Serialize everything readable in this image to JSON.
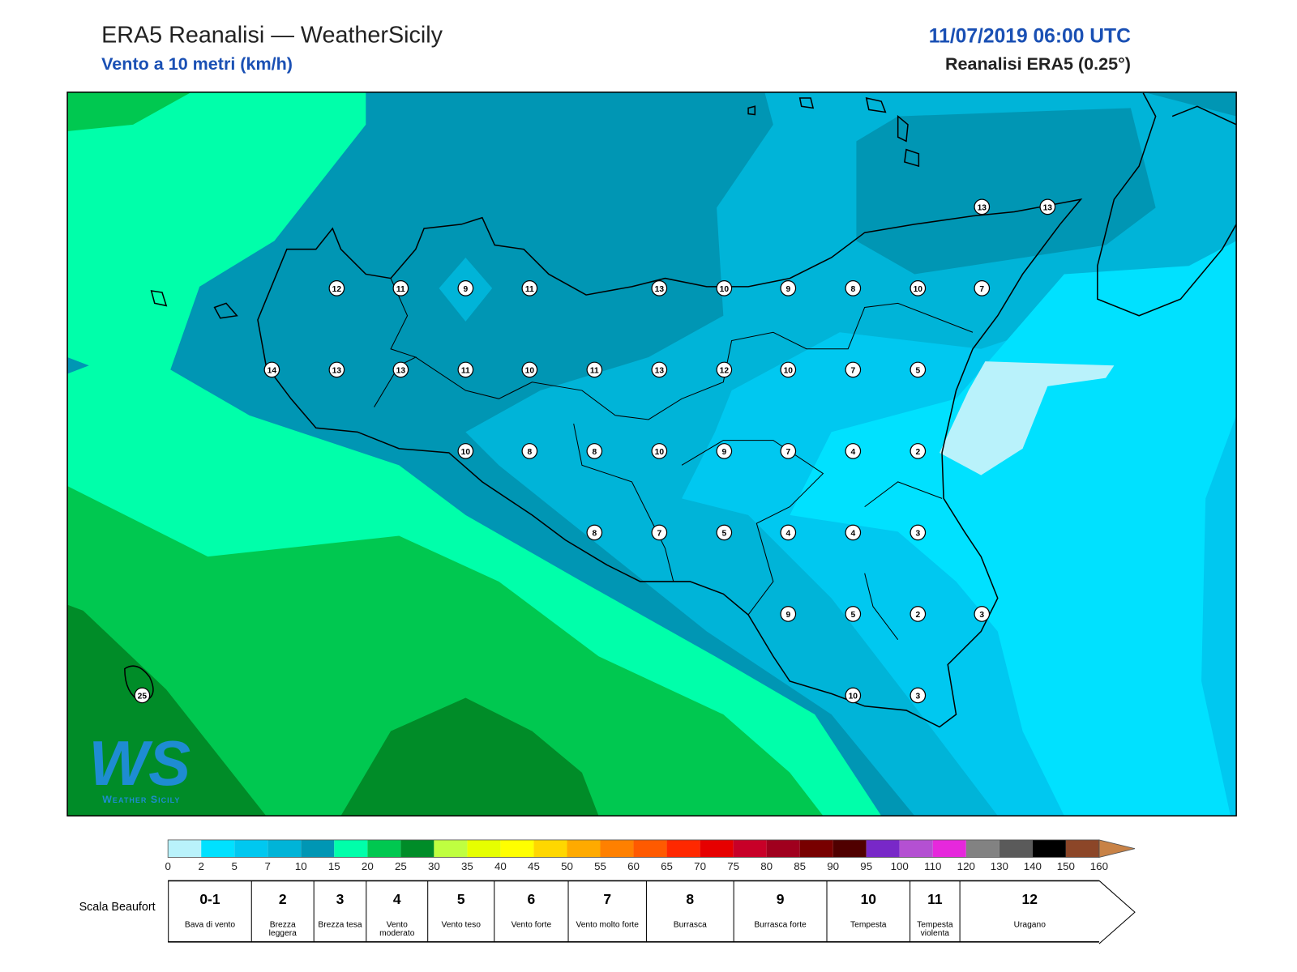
{
  "header": {
    "title": "ERA5 Reanalisi — WeatherSicily",
    "subtitle": "Vento a 10 metri (km/h)",
    "date": "11/07/2019 06:00 UTC",
    "source": "Reanalisi ERA5 (0.25°)"
  },
  "logo": {
    "mark": "WS",
    "text": "Weather Sicily"
  },
  "stations": [
    12,
    11,
    9,
    11,
    13,
    10,
    9,
    8,
    10,
    7,
    13,
    13,
    14,
    13,
    13,
    11,
    10,
    11,
    13,
    12,
    10,
    7,
    5,
    10,
    8,
    8,
    10,
    9,
    7,
    4,
    2,
    8,
    7,
    5,
    4,
    4,
    3,
    9,
    5,
    2,
    3,
    10,
    3,
    25
  ],
  "colorbar": {
    "ticks": [
      0,
      2,
      5,
      7,
      10,
      15,
      20,
      25,
      30,
      35,
      40,
      45,
      50,
      55,
      60,
      65,
      70,
      75,
      80,
      85,
      90,
      95,
      100,
      110,
      120,
      130,
      140,
      150,
      160
    ],
    "colors": [
      "#b9f2fb",
      "#00e1ff",
      "#00c8f0",
      "#00b4d8",
      "#0096b4",
      "#00ffaa",
      "#00c850",
      "#008c28",
      "#bfff40",
      "#e6ff00",
      "#ffff00",
      "#ffd700",
      "#ffaa00",
      "#ff8000",
      "#ff5a00",
      "#ff2800",
      "#e60000",
      "#c80028",
      "#a0001e",
      "#780000",
      "#500000",
      "#7828c8",
      "#b450d2",
      "#e628dc",
      "#828282",
      "#5a5a5a",
      "#000000",
      "#8c4628"
    ],
    "over_color": "#c88246"
  },
  "beaufort": {
    "label": "Scala Beaufort",
    "classes": [
      {
        "force": "0-1",
        "name": "Bava di vento"
      },
      {
        "force": 2,
        "name": "Brezza leggera"
      },
      {
        "force": 3,
        "name": "Brezza tesa"
      },
      {
        "force": 4,
        "name": "Vento moderato"
      },
      {
        "force": 5,
        "name": "Vento teso"
      },
      {
        "force": 6,
        "name": "Vento forte"
      },
      {
        "force": 7,
        "name": "Vento molto forte"
      },
      {
        "force": 8,
        "name": "Burrasca"
      },
      {
        "force": 9,
        "name": "Burrasca forte"
      },
      {
        "force": 10,
        "name": "Tempesta"
      },
      {
        "force": 11,
        "name": "Tempesta violenta"
      },
      {
        "force": 12,
        "name": "Uragano"
      }
    ]
  }
}
